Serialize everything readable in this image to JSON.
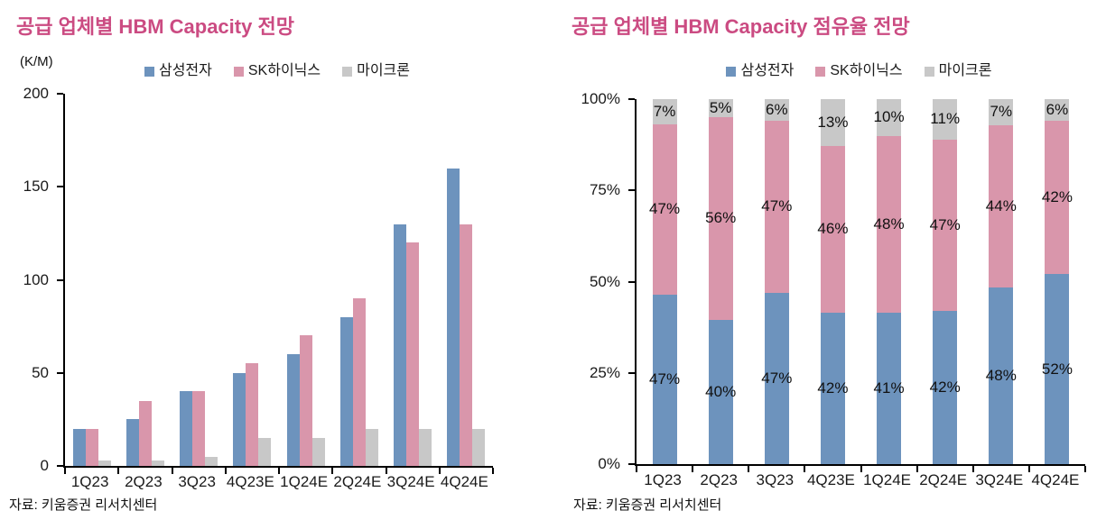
{
  "colors": {
    "title": "#cb4b82",
    "axis": "#000000",
    "text": "#1a1a1a",
    "samsung": "#6d93bd",
    "skhynix": "#d996ab",
    "micron": "#c8c8c8"
  },
  "legend_labels": [
    "삼성전자",
    "SK하이닉스",
    "마이크론"
  ],
  "sources": [
    "자료: 키움증권 리서치센터",
    "자료: 키움증권 리서치센터"
  ],
  "chart_data": [
    {
      "type": "bar",
      "title": "공급 업체별 HBM Capacity 전망",
      "unit": "(K/M)",
      "categories": [
        "1Q23",
        "2Q23",
        "3Q23",
        "4Q23E",
        "1Q24E",
        "2Q24E",
        "3Q24E",
        "4Q24E"
      ],
      "series": [
        {
          "name": "삼성전자",
          "key": "samsung",
          "color": "#6d93bd",
          "values": [
            20,
            25,
            40,
            50,
            60,
            80,
            130,
            160
          ]
        },
        {
          "name": "SK하이닉스",
          "key": "skhynix",
          "color": "#d996ab",
          "values": [
            20,
            35,
            40,
            55,
            70,
            90,
            120,
            130
          ]
        },
        {
          "name": "마이크론",
          "key": "micron",
          "color": "#c8c8c8",
          "values": [
            3,
            3,
            5,
            15,
            15,
            20,
            20,
            20
          ]
        }
      ],
      "ylim": [
        0,
        200
      ],
      "yticks": [
        0,
        50,
        100,
        150,
        200
      ],
      "ytick_labels": [
        "0",
        "50",
        "100",
        "150",
        "200"
      ],
      "grid": false,
      "legend_position": "top",
      "show_value_labels": false
    },
    {
      "type": "bar",
      "stacked_100": true,
      "title": "공급 업체별 HBM Capacity 점유율 전망",
      "unit": "",
      "categories": [
        "1Q23",
        "2Q23",
        "3Q23",
        "4Q23E",
        "1Q24E",
        "2Q24E",
        "3Q24E",
        "4Q24E"
      ],
      "series": [
        {
          "name": "삼성전자",
          "key": "samsung",
          "color": "#6d93bd",
          "values": [
            47,
            40,
            47,
            42,
            41,
            42,
            48,
            52
          ]
        },
        {
          "name": "SK하이닉스",
          "key": "skhynix",
          "color": "#d996ab",
          "values": [
            47,
            56,
            47,
            46,
            48,
            47,
            44,
            42
          ]
        },
        {
          "name": "마이크론",
          "key": "micron",
          "color": "#c8c8c8",
          "values": [
            7,
            5,
            6,
            13,
            10,
            11,
            7,
            6
          ]
        }
      ],
      "ylim": [
        0,
        100
      ],
      "yticks": [
        0,
        25,
        50,
        75,
        100
      ],
      "ytick_labels": [
        "0%",
        "25%",
        "50%",
        "75%",
        "100%"
      ],
      "grid": false,
      "legend_position": "top",
      "show_value_labels": true,
      "value_label_suffix": "%"
    }
  ]
}
